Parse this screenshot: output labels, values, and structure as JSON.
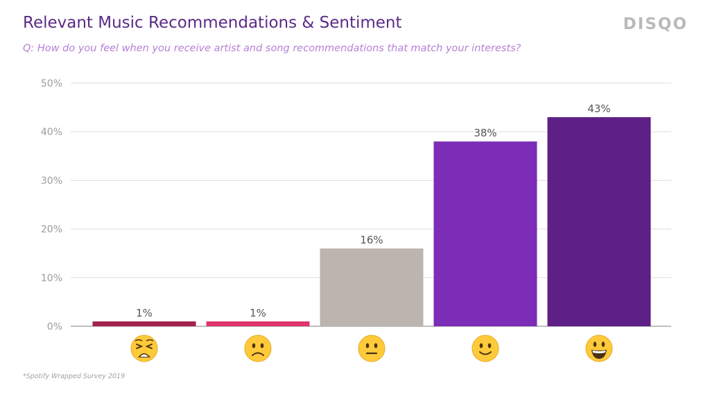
{
  "header": {
    "title": "Relevant Music Recommendations & Sentiment",
    "subtitle": "Q: How do you feel when you receive artist and song recommendations that match your interests?",
    "logo_text": "DISQO"
  },
  "footnote": "*Spotify Wrapped Survey 2019",
  "colors": {
    "title": "#5a2a86",
    "subtitle": "#b57fd6",
    "logo": "#b9b9b9"
  },
  "chart_data": {
    "type": "bar",
    "title": "Relevant Music Recommendations & Sentiment",
    "xlabel": "",
    "ylabel": "",
    "ylim": [
      0,
      50
    ],
    "yticks": [
      "0%",
      "10%",
      "20%",
      "30%",
      "40%",
      "50%"
    ],
    "ytick_values": [
      0,
      10,
      20,
      30,
      40,
      50
    ],
    "grid": true,
    "categories": [
      "weary-face",
      "slightly-frowning-face",
      "neutral-face",
      "slightly-smiling-face",
      "grinning-face"
    ],
    "category_icons": [
      "😩",
      "🙁",
      "😐",
      "🙂",
      "😀"
    ],
    "values": [
      1,
      1,
      16,
      38,
      43
    ],
    "value_labels": [
      "1%",
      "1%",
      "16%",
      "38%",
      "43%"
    ],
    "bar_colors": [
      "#a3234f",
      "#e0356c",
      "#bcb4ae",
      "#7b2db5",
      "#5e1f86"
    ]
  }
}
